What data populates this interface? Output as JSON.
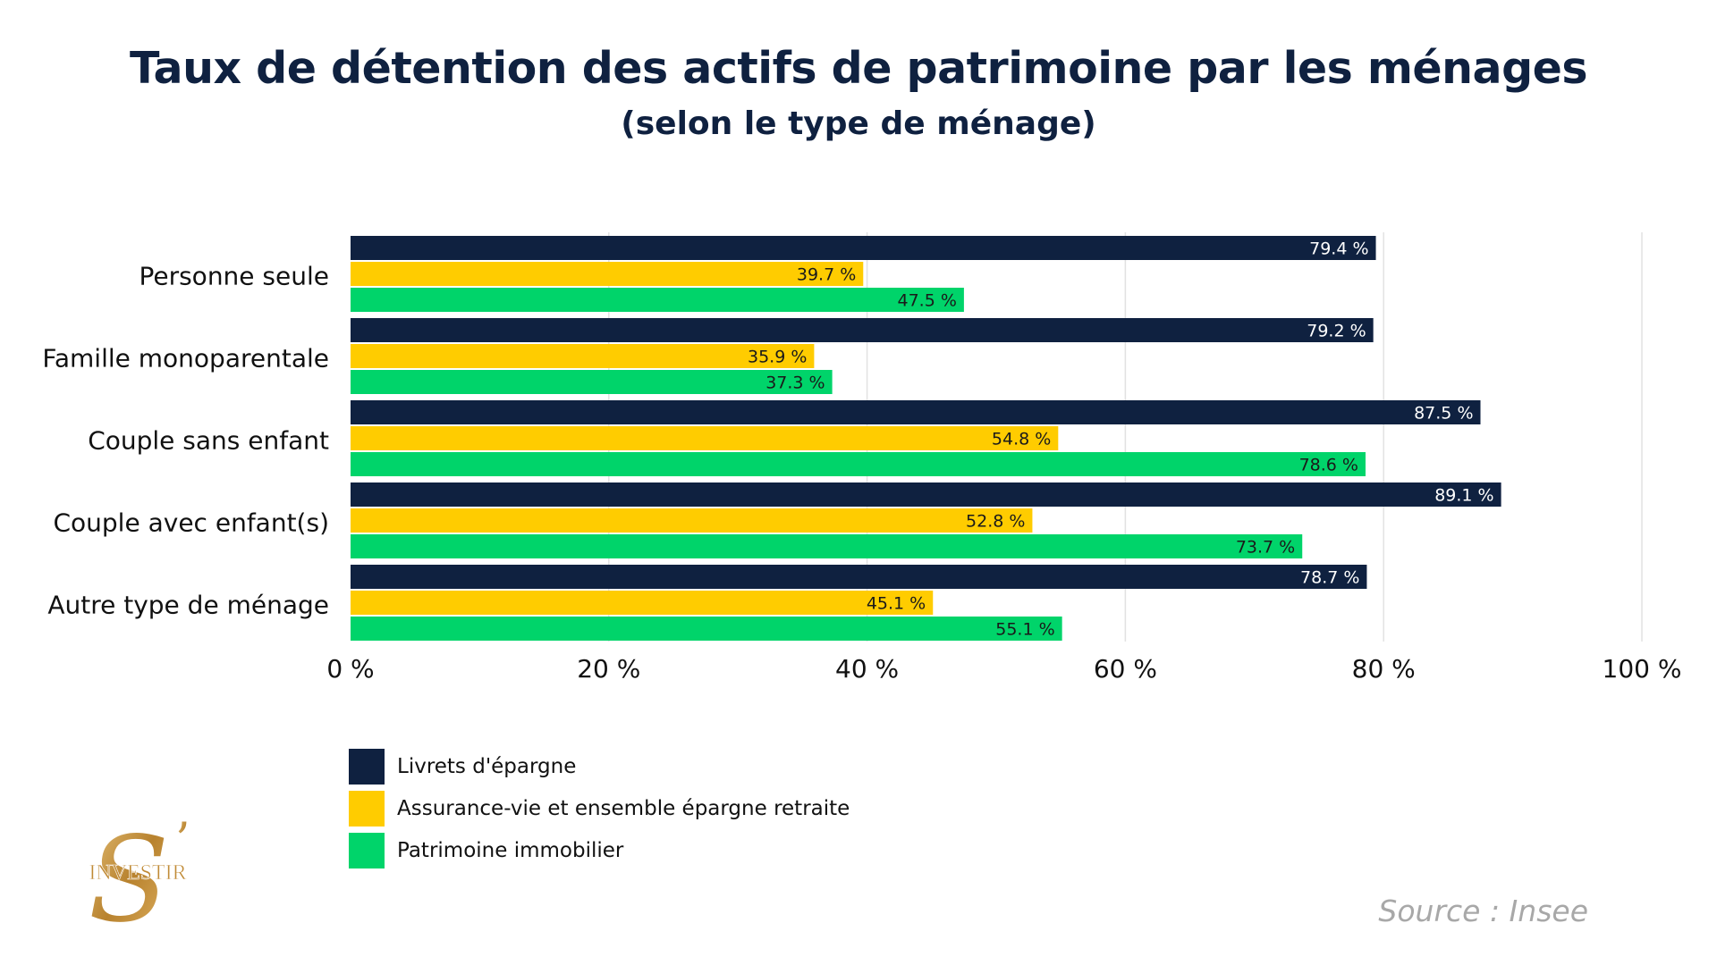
{
  "chart_data": {
    "type": "bar",
    "orientation": "horizontal",
    "title": "Taux de détention des actifs de patrimoine par les ménages",
    "subtitle": "(selon le type de ménage)",
    "categories": [
      "Personne seule",
      "Famille monoparentale",
      "Couple sans enfant",
      "Couple avec enfant(s)",
      "Autre type de ménage"
    ],
    "series": [
      {
        "name": "Livrets d'épargne",
        "color": "#0f2140",
        "label_color": "#ffffff",
        "values": [
          79.4,
          79.2,
          87.5,
          89.1,
          78.7
        ],
        "labels": [
          "79.4 %",
          "79.2 %",
          "87.5 %",
          "89.1 %",
          "78.7 %"
        ]
      },
      {
        "name": "Assurance-vie et ensemble épargne retraite",
        "color": "#ffcc00",
        "label_color": "#1a1a1a",
        "values": [
          39.7,
          35.9,
          54.8,
          52.8,
          45.1
        ],
        "labels": [
          "39.7 %",
          "35.9 %",
          "54.8 %",
          "52.8 %",
          "45.1 %"
        ]
      },
      {
        "name": "Patrimoine immobilier",
        "color": "#00d46a",
        "label_color": "#1a1a1a",
        "values": [
          47.5,
          37.3,
          78.6,
          73.7,
          55.1
        ],
        "labels": [
          "47.5 %",
          "37.3 %",
          "78.6 %",
          "73.7 %",
          "55.1 %"
        ]
      }
    ],
    "xlim": [
      0,
      100
    ],
    "xticks": [
      0,
      20,
      40,
      60,
      80,
      100
    ],
    "xtick_labels": [
      "0 %",
      "20 %",
      "40 %",
      "60 %",
      "80 %",
      "100 %"
    ],
    "grid": true,
    "legend_position": "bottom-left"
  },
  "source": "Source : Insee",
  "logo": {
    "text": "INVESTIR",
    "letter": "S",
    "apostrophe": "’",
    "color": "#c9973f"
  }
}
